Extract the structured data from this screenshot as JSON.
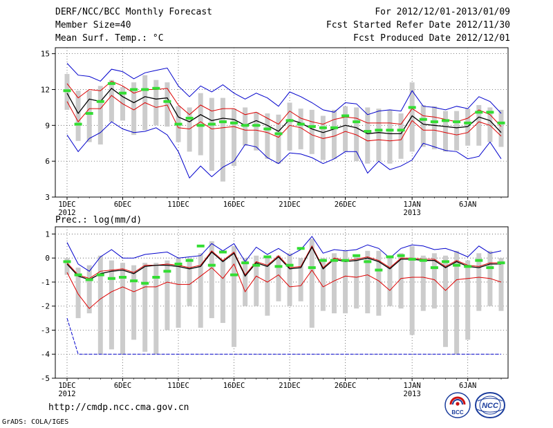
{
  "header": {
    "title": "DERF/NCC/BCC Monthly Forecast",
    "member_size": "Member Size=40",
    "variable": "Mean Surf. Temp.: °C",
    "period": "For 2012/12/01-2013/01/09",
    "fcst_started": "Fcst Started Refer Date 2012/11/30",
    "fcst_produced": "Fcst Produced Date 2012/12/01"
  },
  "footer": {
    "url": "http://cmdp.ncc.cma.gov.cn",
    "grads": "GrADS: COLA/IGES"
  },
  "logos": {
    "bcc": "BCC",
    "ncc": "NCC"
  },
  "colors": {
    "max_min": "#0000cc",
    "percentile": "#dd0000",
    "mean": "#000000",
    "spread_bar": "#cccccc",
    "observed": "#33dd33",
    "grid": "#555555"
  },
  "chart_data": [
    {
      "type": "box-spaghetti",
      "title": "Mean Surf. Temp.: °C",
      "xlabel": "",
      "ylabel": "",
      "days": 40,
      "ylim": [
        3,
        15.5
      ],
      "yticks": [
        3,
        6,
        9,
        12,
        15
      ],
      "xtick_labels": [
        {
          "day": 1,
          "label": "1DEC",
          "sub": "2012"
        },
        {
          "day": 6,
          "label": "6DEC",
          "sub": ""
        },
        {
          "day": 11,
          "label": "11DEC",
          "sub": ""
        },
        {
          "day": 16,
          "label": "16DEC",
          "sub": ""
        },
        {
          "day": 21,
          "label": "21DEC",
          "sub": ""
        },
        {
          "day": 26,
          "label": "26DEC",
          "sub": ""
        },
        {
          "day": 32,
          "label": "1JAN",
          "sub": "2013"
        },
        {
          "day": 37,
          "label": "6JAN",
          "sub": ""
        }
      ],
      "series": [
        {
          "name": "max",
          "values": [
            14.2,
            13.2,
            13.1,
            12.7,
            13.7,
            13.5,
            12.9,
            13.4,
            13.6,
            13.8,
            12.3,
            11.4,
            12.3,
            11.8,
            12.4,
            11.7,
            11.2,
            11.7,
            11.3,
            10.6,
            11.8,
            11.4,
            10.9,
            10.3,
            10.1,
            10.9,
            10.8,
            9.9,
            10.2,
            10.3,
            10.2,
            11.9,
            10.6,
            10.5,
            10.3,
            10.6,
            10.4,
            11.4,
            11.0,
            10.0
          ]
        },
        {
          "name": "p90",
          "values": [
            12.5,
            11.3,
            12.0,
            11.9,
            12.7,
            12.3,
            11.7,
            12.0,
            12.0,
            12.1,
            10.7,
            9.9,
            10.7,
            10.2,
            10.4,
            10.4,
            9.9,
            10.1,
            9.6,
            9.1,
            10.2,
            9.6,
            9.3,
            9.1,
            9.5,
            9.7,
            9.6,
            9.2,
            9.2,
            9.2,
            9.1,
            10.4,
            9.8,
            9.7,
            9.5,
            9.3,
            9.6,
            10.3,
            9.9,
            8.9
          ]
        },
        {
          "name": "mean",
          "values": [
            11.7,
            10.0,
            11.2,
            11.0,
            12.1,
            11.4,
            10.9,
            11.4,
            11.2,
            11.3,
            9.7,
            9.3,
            9.9,
            9.4,
            9.6,
            9.5,
            9.0,
            9.4,
            9.0,
            8.5,
            9.5,
            9.2,
            8.7,
            8.4,
            8.7,
            9.0,
            8.8,
            8.3,
            8.4,
            8.3,
            8.3,
            9.8,
            9.1,
            9.0,
            8.9,
            8.8,
            8.9,
            9.7,
            9.4,
            8.4
          ]
        },
        {
          "name": "p10",
          "values": [
            11.0,
            9.3,
            10.4,
            10.4,
            11.5,
            10.8,
            10.3,
            10.9,
            10.5,
            10.7,
            8.8,
            8.7,
            9.3,
            8.7,
            8.8,
            8.9,
            8.6,
            8.6,
            8.4,
            8.0,
            9.0,
            8.8,
            8.2,
            7.9,
            8.1,
            8.5,
            8.2,
            7.7,
            7.8,
            7.7,
            7.8,
            9.4,
            8.6,
            8.6,
            8.4,
            8.2,
            8.4,
            9.3,
            9.0,
            8.1
          ]
        },
        {
          "name": "min",
          "values": [
            8.2,
            6.8,
            7.9,
            8.4,
            9.3,
            8.7,
            8.4,
            8.5,
            8.8,
            8.2,
            6.8,
            4.6,
            5.6,
            4.7,
            5.5,
            6.0,
            7.4,
            7.2,
            6.3,
            5.8,
            6.7,
            6.6,
            6.3,
            5.8,
            6.2,
            6.8,
            6.8,
            5.0,
            6.0,
            5.3,
            5.6,
            6.1,
            7.5,
            7.2,
            6.9,
            6.8,
            6.2,
            6.4,
            7.6,
            6.2
          ]
        }
      ],
      "spread_bars": {
        "low": [
          10.3,
          7.7,
          7.6,
          7.4,
          9.3,
          9.4,
          8.2,
          8.6,
          9.0,
          8.9,
          7.6,
          6.8,
          6.5,
          5.2,
          4.3,
          5.6,
          7.3,
          6.9,
          6.2,
          5.8,
          6.9,
          7.0,
          6.6,
          6.1,
          6.2,
          6.8,
          6.0,
          5.8,
          6.0,
          5.8,
          6.2,
          6.8,
          7.2,
          7.0,
          6.8,
          6.9,
          7.3,
          7.3,
          7.6,
          7.2
        ],
        "high": [
          13.3,
          11.9,
          11.9,
          12.3,
          12.8,
          12.2,
          12.6,
          13.2,
          12.8,
          12.6,
          10.6,
          10.5,
          11.7,
          11.3,
          11.3,
          10.4,
          10.5,
          10.1,
          10.0,
          9.9,
          10.9,
          10.4,
          10.3,
          9.8,
          10.3,
          10.6,
          10.5,
          10.5,
          10.4,
          10.3,
          10.0,
          12.6,
          10.7,
          10.6,
          10.2,
          10.2,
          10.4,
          10.7,
          10.5,
          10.3
        ]
      },
      "observed": [
        11.9,
        9.1,
        10.0,
        11.0,
        12.5,
        11.7,
        12.0,
        12.0,
        12.1,
        11.0,
        9.1,
        9.6,
        9.0,
        9.1,
        9.3,
        9.2,
        9.0,
        9.0,
        8.7,
        8.3,
        9.4,
        9.1,
        8.9,
        8.8,
        8.8,
        9.8,
        9.3,
        8.5,
        8.6,
        8.6,
        8.6,
        10.5,
        9.5,
        9.3,
        9.4,
        9.3,
        9.2,
        10.1,
        10.1,
        9.2
      ]
    },
    {
      "type": "box-spaghetti",
      "title": "Prec.: log(mm/d)",
      "xlabel": "",
      "ylabel": "",
      "days": 40,
      "ylim": [
        -5,
        1.3
      ],
      "yticks": [
        -5,
        -4,
        -3,
        -2,
        -1,
        0,
        1
      ],
      "xtick_labels": [
        {
          "day": 1,
          "label": "1DEC",
          "sub": "2012"
        },
        {
          "day": 6,
          "label": "6DEC",
          "sub": ""
        },
        {
          "day": 11,
          "label": "11DEC",
          "sub": ""
        },
        {
          "day": 16,
          "label": "16DEC",
          "sub": ""
        },
        {
          "day": 21,
          "label": "21DEC",
          "sub": ""
        },
        {
          "day": 26,
          "label": "26DEC",
          "sub": ""
        },
        {
          "day": 32,
          "label": "1JAN",
          "sub": "2013"
        },
        {
          "day": 37,
          "label": "6JAN",
          "sub": ""
        }
      ],
      "series": [
        {
          "name": "max",
          "values": [
            0.65,
            -0.25,
            -0.55,
            0.05,
            0.35,
            0.0,
            0.0,
            0.15,
            0.2,
            0.25,
            0.0,
            0.05,
            0.1,
            0.6,
            0.3,
            0.6,
            -0.15,
            0.45,
            0.15,
            0.4,
            0.1,
            0.35,
            0.9,
            0.2,
            0.35,
            0.3,
            0.35,
            0.55,
            0.4,
            0.0,
            0.4,
            0.55,
            0.5,
            0.35,
            0.4,
            0.25,
            0.05,
            0.5,
            0.2,
            0.3
          ]
        },
        {
          "name": "p90",
          "values": [
            -0.2,
            -0.7,
            -0.85,
            -0.55,
            -0.5,
            -0.45,
            -0.6,
            -0.3,
            -0.3,
            -0.25,
            -0.3,
            -0.4,
            -0.3,
            0.3,
            -0.1,
            0.25,
            -0.7,
            -0.15,
            -0.3,
            0.1,
            -0.4,
            -0.35,
            0.5,
            -0.4,
            0.0,
            -0.1,
            -0.05,
            0.05,
            -0.1,
            -0.4,
            0.0,
            0.0,
            -0.05,
            -0.05,
            -0.35,
            -0.1,
            -0.3,
            -0.35,
            -0.2,
            -0.2
          ]
        },
        {
          "name": "mean",
          "values": [
            -0.25,
            -0.75,
            -0.9,
            -0.65,
            -0.55,
            -0.5,
            -0.65,
            -0.35,
            -0.3,
            -0.3,
            -0.35,
            -0.45,
            -0.35,
            0.25,
            -0.15,
            0.2,
            -0.75,
            -0.2,
            -0.35,
            0.05,
            -0.45,
            -0.4,
            0.45,
            -0.45,
            -0.05,
            -0.15,
            -0.1,
            0.0,
            -0.15,
            -0.45,
            -0.05,
            -0.05,
            -0.1,
            -0.1,
            -0.4,
            -0.15,
            -0.35,
            -0.4,
            -0.25,
            -0.25
          ]
        },
        {
          "name": "p10",
          "values": [
            -0.6,
            -1.5,
            -2.1,
            -1.7,
            -1.4,
            -1.2,
            -1.4,
            -1.2,
            -1.2,
            -1.0,
            -1.1,
            -1.1,
            -0.75,
            -0.4,
            -0.85,
            -0.25,
            -1.4,
            -0.75,
            -1.0,
            -0.7,
            -1.2,
            -1.15,
            -0.5,
            -1.2,
            -0.95,
            -0.75,
            -0.8,
            -0.7,
            -0.95,
            -1.35,
            -0.85,
            -0.8,
            -0.8,
            -0.9,
            -1.35,
            -0.9,
            -0.85,
            -0.8,
            -0.85,
            -1.0
          ]
        },
        {
          "name": "min",
          "values": [
            -2.5,
            -4.0,
            -4.0,
            -4.0,
            -4.0,
            -4.0,
            -4.0,
            -4.0,
            -4.0,
            -4.0,
            -4.0,
            -4.0,
            -4.0,
            -4.0,
            -4.0,
            -4.0,
            -4.0,
            -4.0,
            -4.0,
            -4.0,
            -4.0,
            -4.0,
            -4.0,
            -4.0,
            -4.0,
            -4.0,
            -4.0,
            -4.0,
            -4.0,
            -4.0,
            -4.0,
            -4.0,
            -4.0,
            -4.0,
            -4.0,
            -4.0,
            -4.0,
            -4.0,
            -4.0,
            -4.0
          ]
        }
      ],
      "spread_bars": {
        "low": [
          -0.7,
          -2.5,
          -2.3,
          -4.0,
          -3.8,
          -4.0,
          -3.4,
          -3.9,
          -4.0,
          -3.0,
          -2.9,
          -2.0,
          -2.9,
          -2.5,
          -2.7,
          -3.7,
          -2.0,
          -2.0,
          -2.4,
          -1.8,
          -2.0,
          -1.8,
          -2.9,
          -2.2,
          -2.3,
          -2.3,
          -2.1,
          -2.3,
          -2.4,
          -2.0,
          -2.1,
          -3.2,
          -2.2,
          -2.1,
          -3.7,
          -4.0,
          -3.4,
          -2.2,
          -2.0,
          -2.2
        ],
        "high": [
          0.0,
          -0.4,
          -0.3,
          0.1,
          -0.1,
          -0.2,
          -0.3,
          -0.2,
          -0.2,
          -0.1,
          0.0,
          0.0,
          0.2,
          0.7,
          -0.1,
          0.5,
          0.0,
          0.1,
          0.1,
          0.1,
          0.2,
          0.0,
          0.8,
          0.0,
          0.2,
          0.3,
          0.1,
          0.3,
          0.3,
          0.0,
          0.2,
          0.5,
          0.1,
          0.2,
          0.1,
          0.3,
          -0.1,
          0.2,
          0.3,
          0.0
        ]
      },
      "observed": [
        -0.15,
        -0.7,
        -0.9,
        -0.7,
        -0.85,
        -0.8,
        -0.95,
        -1.05,
        -0.8,
        -0.55,
        -0.25,
        -0.1,
        0.5,
        -0.3,
        0.25,
        -0.7,
        -0.2,
        -0.3,
        0.05,
        -0.35,
        -0.3,
        0.4,
        -0.4,
        -0.1,
        -0.1,
        -0.1,
        0.1,
        -0.15,
        -0.5,
        0.05,
        0.1,
        -0.05,
        -0.1,
        -0.4,
        -0.15,
        -0.3,
        -0.35,
        -0.1,
        -0.4,
        -0.2
      ]
    }
  ]
}
